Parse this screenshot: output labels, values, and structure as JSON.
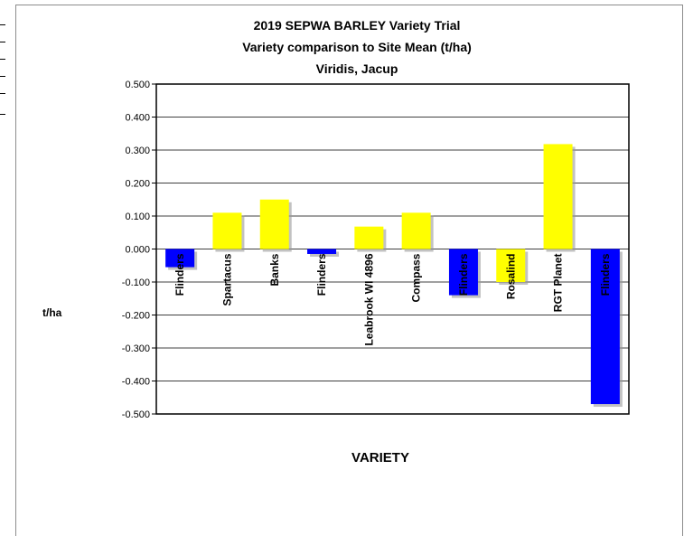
{
  "chart_data": {
    "type": "bar",
    "title_lines": [
      "2019 SEPWA BARLEY Variety Trial",
      "Variety comparison to Site Mean (t/ha)",
      "Viridis, Jacup"
    ],
    "xlabel": "VARIETY",
    "ylabel": "t/ha",
    "ylim": [
      -0.5,
      0.5
    ],
    "yticks": [
      "0.500",
      "0.400",
      "0.300",
      "0.200",
      "0.100",
      "0.000",
      "-0.100",
      "-0.200",
      "-0.300",
      "-0.400",
      "-0.500"
    ],
    "tick_values": [
      0.5,
      0.4,
      0.3,
      0.2,
      0.1,
      0.0,
      -0.1,
      -0.2,
      -0.3,
      -0.4,
      -0.5
    ],
    "categories": [
      "Flinders",
      "Spartacus",
      "Banks",
      "Flinders",
      "Leabrook WI 4896",
      "Compass",
      "Flinders",
      "Rosalind",
      "RGT Planet",
      "Flinders"
    ],
    "values": [
      -0.055,
      0.11,
      0.15,
      -0.015,
      0.068,
      0.11,
      -0.14,
      -0.1,
      0.318,
      -0.47
    ],
    "bar_colors": [
      "#0000ff",
      "#ffff00",
      "#ffff00",
      "#0000ff",
      "#ffff00",
      "#ffff00",
      "#0000ff",
      "#ffff00",
      "#ffff00",
      "#0000ff"
    ],
    "grid": true,
    "legend": "none"
  }
}
